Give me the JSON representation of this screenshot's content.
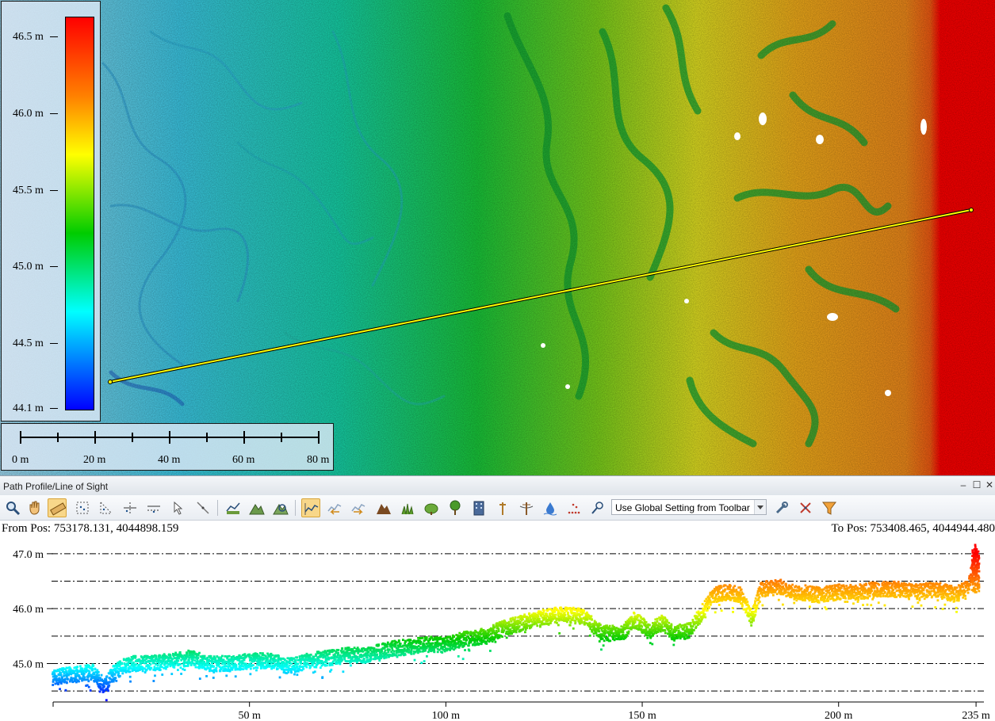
{
  "map": {
    "legend": {
      "ticks": [
        "46.5 m",
        "46.0 m",
        "45.5 m",
        "45.0 m",
        "44.5 m",
        "44.1 m"
      ],
      "colors": [
        "#ff0000",
        "#ff8000",
        "#ffff00",
        "#00cc00",
        "#00ffff",
        "#0000ff"
      ]
    },
    "scale_bar": {
      "labels": [
        "0 m",
        "20 m",
        "40 m",
        "60 m",
        "80 m"
      ]
    },
    "profile_line_color": "#ffff00"
  },
  "panel": {
    "title": "Path Profile/Line of Sight",
    "window_buttons": {
      "minimize": "–",
      "maximize": "☐",
      "close": "✕"
    },
    "toolbar": {
      "dropdown_value": "Use Global Setting from Toolbar",
      "icons": [
        "zoom-icon",
        "pan-hand-icon",
        "ruler-icon",
        "select-points-icon",
        "select-points-alt-icon",
        "cross-section-icon",
        "cross-section-alt-icon",
        "select-arrow-icon",
        "line-tool-icon",
        "profile-classify-icon",
        "terrain-icon",
        "terrain-select-icon",
        "profile-view-icon",
        "step-back-icon",
        "step-forward-icon",
        "ground-icon",
        "low-vegetation-icon",
        "medium-vegetation-icon",
        "high-vegetation-icon",
        "building-icon",
        "pole-icon",
        "powerline-icon",
        "water-icon",
        "noise-points-icon",
        "filter-brush-icon",
        "settings-tools-icon",
        "clear-icon",
        "funnel-filter-icon"
      ]
    },
    "from_pos": "From Pos: 753178.131, 4044898.159",
    "to_pos": "To Pos: 753408.465, 4044944.480"
  },
  "chart_data": {
    "type": "scatter",
    "title": "",
    "xlabel": "",
    "ylabel": "",
    "xlim": [
      0,
      237
    ],
    "ylim": [
      44.3,
      47.2
    ],
    "x_ticks": [
      "50 m",
      "100 m",
      "150 m",
      "200 m",
      "235 m"
    ],
    "x_tick_values": [
      50,
      100,
      150,
      200,
      235
    ],
    "y_ticks": [
      "47.0 m",
      "46.0 m",
      "45.0 m"
    ],
    "y_tick_values": [
      47.0,
      46.0,
      45.0
    ],
    "grid_y": [
      47.0,
      46.5,
      46.0,
      45.5,
      45.0,
      44.5
    ],
    "grid": "dash-dot horizontal",
    "color_ramp": [
      "#0000ff",
      "#00ffff",
      "#00cc00",
      "#ffff00",
      "#ff8000",
      "#ff0000"
    ],
    "series": [
      {
        "x": [
          0,
          5,
          10,
          13,
          15,
          18,
          20,
          25,
          30,
          35,
          40,
          45,
          50,
          55,
          60,
          65,
          70,
          75,
          80,
          85,
          90,
          95,
          100,
          105,
          110,
          115,
          120,
          125,
          130,
          135,
          140,
          145,
          148,
          152,
          155,
          158,
          162,
          165,
          168,
          172,
          175,
          178,
          180,
          185,
          190,
          195,
          200,
          205,
          210,
          215,
          220,
          225,
          230,
          233,
          235
        ],
        "y": [
          44.75,
          44.8,
          44.85,
          44.6,
          44.8,
          44.95,
          45.0,
          45.0,
          45.05,
          45.1,
          45.0,
          45.0,
          45.05,
          45.05,
          44.95,
          45.05,
          45.1,
          45.15,
          45.15,
          45.25,
          45.3,
          45.35,
          45.35,
          45.45,
          45.5,
          45.65,
          45.75,
          45.85,
          45.9,
          45.85,
          45.55,
          45.55,
          45.8,
          45.6,
          45.75,
          45.55,
          45.6,
          45.9,
          46.25,
          46.3,
          46.25,
          45.8,
          46.35,
          46.4,
          46.3,
          46.25,
          46.3,
          46.3,
          46.35,
          46.35,
          46.3,
          46.35,
          46.25,
          46.4,
          47.05
        ]
      }
    ]
  }
}
